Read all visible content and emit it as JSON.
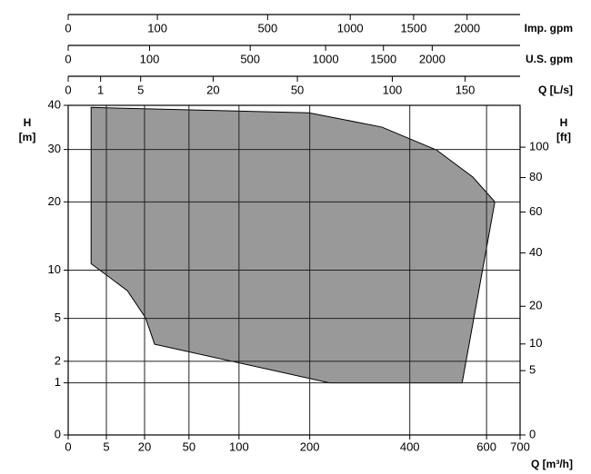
{
  "chart_data": {
    "type": "area",
    "x_scale": "sqrt",
    "y_scale": "sqrt",
    "x_label": "Q [m³/h]",
    "y_label": [
      "H",
      "[m]"
    ],
    "y2_label": [
      "H",
      "[ft]"
    ],
    "xlim": [
      0,
      700
    ],
    "xticks": [
      0,
      5,
      20,
      50,
      100,
      200,
      400,
      600,
      700
    ],
    "ylim": [
      0,
      40
    ],
    "yticks": [
      0,
      1,
      2,
      5,
      10,
      20,
      30,
      40
    ],
    "y2lim": [
      0,
      131.2
    ],
    "y2ticks": [
      0,
      5,
      10,
      20,
      40,
      60,
      80,
      100
    ],
    "top_axes": [
      {
        "label": "Imp. gpm",
        "lim": [
          0,
          2567
        ],
        "ticks": [
          0,
          100,
          500,
          1000,
          1500,
          2000
        ]
      },
      {
        "label": "U.S. gpm",
        "lim": [
          0,
          3082
        ],
        "ticks": [
          0,
          100,
          500,
          1000,
          1500,
          2000
        ]
      },
      {
        "label": "Q [L/s]",
        "lim": [
          0,
          194.4
        ],
        "ticks": [
          0,
          1,
          5,
          20,
          50,
          100,
          150
        ]
      }
    ],
    "grid": true,
    "color": "#999999",
    "x": [
      1.8,
      199,
      337,
      465,
      561,
      624,
      532,
      234,
      25.6,
      20.5,
      12,
      1.8
    ],
    "y": [
      39.5,
      38.2,
      34.9,
      29.9,
      24.5,
      20,
      1,
      1,
      3.03,
      5.05,
      7.67,
      10.8
    ]
  }
}
